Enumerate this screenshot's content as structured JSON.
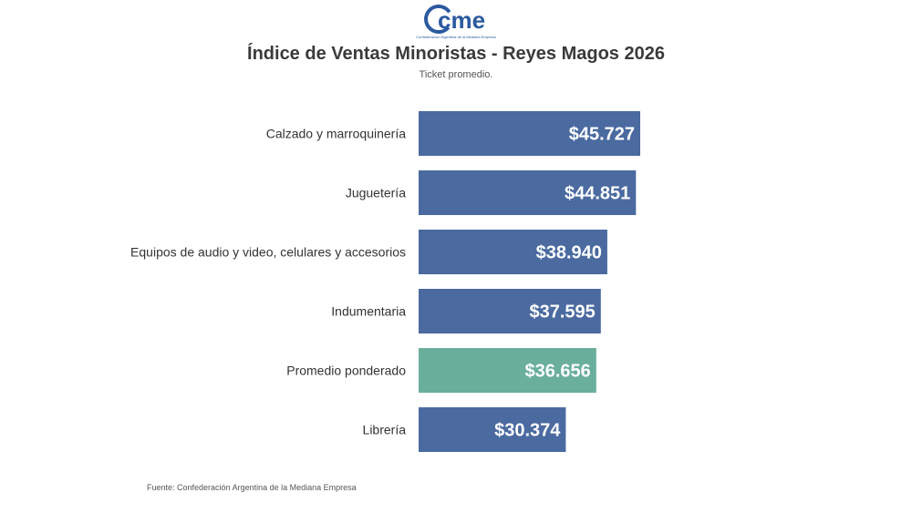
{
  "logo": {
    "text": "cme",
    "caption": "Confederación Argentina de la Mediana Empresa"
  },
  "chart_data": {
    "type": "bar",
    "orientation": "horizontal",
    "title": "Índice de Ventas Minoristas - Reyes Magos 2026",
    "subtitle": "Ticket promedio.",
    "categories": [
      "Calzado y marroquinería",
      "Juguetería",
      "Equipos de audio y video, celulares y accesorios",
      "Indumentaria",
      "Promedio ponderado",
      "Librería"
    ],
    "values": [
      45727,
      44851,
      38940,
      37595,
      36656,
      30374
    ],
    "value_labels": [
      "$45.727",
      "$44.851",
      "$38.940",
      "$37.595",
      "$36.656",
      "$30.374"
    ],
    "colors": [
      "#4a6aa0",
      "#4a6aa0",
      "#4a6aa0",
      "#4a6aa0",
      "#6aae9c",
      "#4a6aa0"
    ],
    "xlim": [
      0,
      45727
    ],
    "grid": false,
    "legend": false
  },
  "source": "Fuente: Confederación Argentina de la Mediana Empresa"
}
